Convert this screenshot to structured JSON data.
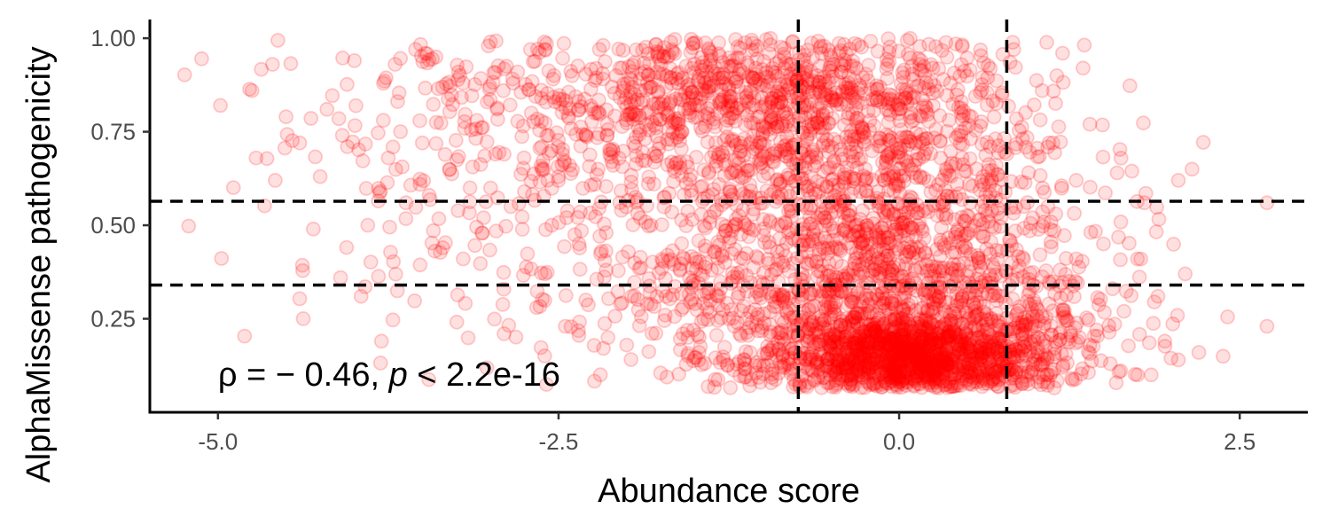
{
  "chart_data": {
    "type": "scatter",
    "xlabel": "Abundance score",
    "ylabel": "AlphaMissense pathogenicity",
    "xlim": [
      -5.5,
      3.0
    ],
    "ylim": [
      0.0,
      1.05
    ],
    "x_ticks": [
      {
        "value": -5.0,
        "label": "-5.0"
      },
      {
        "value": -2.5,
        "label": "-2.5"
      },
      {
        "value": 0.0,
        "label": "0.0"
      },
      {
        "value": 2.5,
        "label": "2.5"
      }
    ],
    "y_ticks": [
      {
        "value": 0.25,
        "label": "0.25"
      },
      {
        "value": 0.5,
        "label": "0.50"
      },
      {
        "value": 0.75,
        "label": "0.75"
      },
      {
        "value": 1.0,
        "label": "1.00"
      }
    ],
    "reference_lines": {
      "vertical": [
        -0.74,
        0.79
      ],
      "horizontal": [
        0.34,
        0.564
      ],
      "style": "dashed",
      "color": "#000000"
    },
    "annotation": {
      "rho_symbol": "ρ",
      "rho_value": " = − 0.46, ",
      "p_symbol": "p",
      "p_value": " < 2.2e-16",
      "x": -5.0,
      "y": 0.08
    },
    "point_color": "#ff0000",
    "point_alpha": 0.12,
    "grid": false,
    "series": [
      {
        "points": [
          [
            -5.12,
            0.945
          ],
          [
            -4.72,
            0.68
          ],
          [
            -4.6,
            0.93
          ],
          [
            -4.58,
            0.62
          ],
          [
            -4.75,
            0.86
          ],
          [
            -4.5,
            0.79
          ],
          [
            -4.2,
            0.81
          ],
          [
            -4.05,
            0.71
          ],
          [
            -3.9,
            0.5
          ],
          [
            -3.7,
            0.93
          ],
          [
            -3.55,
            0.97
          ],
          [
            -3.4,
            0.95
          ],
          [
            -3.2,
            0.88
          ],
          [
            -3.0,
            0.99
          ],
          [
            -2.8,
            0.91
          ],
          [
            -2.6,
            0.97
          ],
          [
            -2.4,
            0.9
          ],
          [
            -2.2,
            0.97
          ],
          [
            -2.05,
            0.92
          ],
          [
            -1.9,
            0.86
          ],
          [
            -4.3,
            0.49
          ],
          [
            -4.1,
            0.36
          ],
          [
            -3.95,
            0.31
          ],
          [
            -3.8,
            0.19
          ],
          [
            -3.62,
            0.56
          ],
          [
            -3.35,
            0.44
          ],
          [
            -3.2,
            0.41
          ],
          [
            -3.05,
            0.52
          ],
          [
            -2.9,
            0.21
          ],
          [
            -2.75,
            0.59
          ],
          [
            -2.6,
            0.37
          ],
          [
            -2.45,
            0.23
          ],
          [
            -2.3,
            0.3
          ],
          [
            -2.15,
            0.48
          ],
          [
            -2.0,
            0.18
          ],
          [
            -1.85,
            0.29
          ],
          [
            -1.7,
            0.42
          ],
          [
            -1.55,
            0.2
          ],
          [
            -1.4,
            0.33
          ],
          [
            -1.25,
            0.25
          ],
          [
            -3.5,
            0.72
          ],
          [
            -3.3,
            0.65
          ],
          [
            -3.1,
            0.78
          ],
          [
            -2.9,
            0.69
          ],
          [
            -2.7,
            0.8
          ],
          [
            -2.5,
            0.63
          ],
          [
            -2.3,
            0.74
          ],
          [
            -2.1,
            0.66
          ],
          [
            -1.95,
            0.72
          ],
          [
            -1.8,
            0.61
          ],
          [
            -4.4,
            0.72
          ],
          [
            -4.25,
            0.63
          ],
          [
            -3.75,
            0.68
          ],
          [
            -3.45,
            0.58
          ],
          [
            -3.15,
            0.6
          ],
          [
            -2.85,
            0.55
          ],
          [
            -2.55,
            0.5
          ],
          [
            -2.35,
            0.45
          ],
          [
            -2.15,
            0.38
          ],
          [
            -1.9,
            0.52
          ],
          [
            1.2,
            0.96
          ],
          [
            1.35,
            0.92
          ],
          [
            1.4,
            0.77
          ],
          [
            1.3,
            0.62
          ],
          [
            1.6,
            0.64
          ],
          [
            1.8,
            0.56
          ],
          [
            2.05,
            0.62
          ],
          [
            2.15,
            0.65
          ],
          [
            1.5,
            0.45
          ],
          [
            1.75,
            0.41
          ],
          [
            2.1,
            0.37
          ],
          [
            1.9,
            0.31
          ],
          [
            1.65,
            0.27
          ],
          [
            1.45,
            0.22
          ],
          [
            2.2,
            0.16
          ],
          [
            2.05,
            0.14
          ],
          [
            1.95,
            0.19
          ],
          [
            1.75,
            0.1
          ],
          [
            1.55,
            0.13
          ],
          [
            2.7,
            0.56
          ],
          [
            2.7,
            0.23
          ],
          [
            1.3,
            0.41
          ],
          [
            1.15,
            0.53
          ],
          [
            1.25,
            0.35
          ],
          [
            1.1,
            0.29
          ],
          [
            1.4,
            0.18
          ],
          [
            1.2,
            0.12
          ],
          [
            1.85,
            0.1
          ],
          [
            1.05,
            0.86
          ],
          [
            1.1,
            0.72
          ]
        ],
        "clusters": [
          {
            "cx": 0.1,
            "cy": 0.13,
            "sx": 0.55,
            "sy": 0.07,
            "n": 1500
          },
          {
            "cx": -0.1,
            "cy": 0.3,
            "sx": 0.75,
            "sy": 0.15,
            "n": 900
          },
          {
            "cx": -0.3,
            "cy": 0.6,
            "sx": 0.85,
            "sy": 0.2,
            "n": 900
          },
          {
            "cx": -0.9,
            "cy": 0.85,
            "sx": 0.8,
            "sy": 0.1,
            "n": 700
          },
          {
            "cx": -2.6,
            "cy": 0.78,
            "sx": 1.1,
            "sy": 0.16,
            "n": 350
          },
          {
            "cx": -2.0,
            "cy": 0.4,
            "sx": 1.1,
            "sy": 0.18,
            "n": 200
          }
        ]
      }
    ]
  }
}
